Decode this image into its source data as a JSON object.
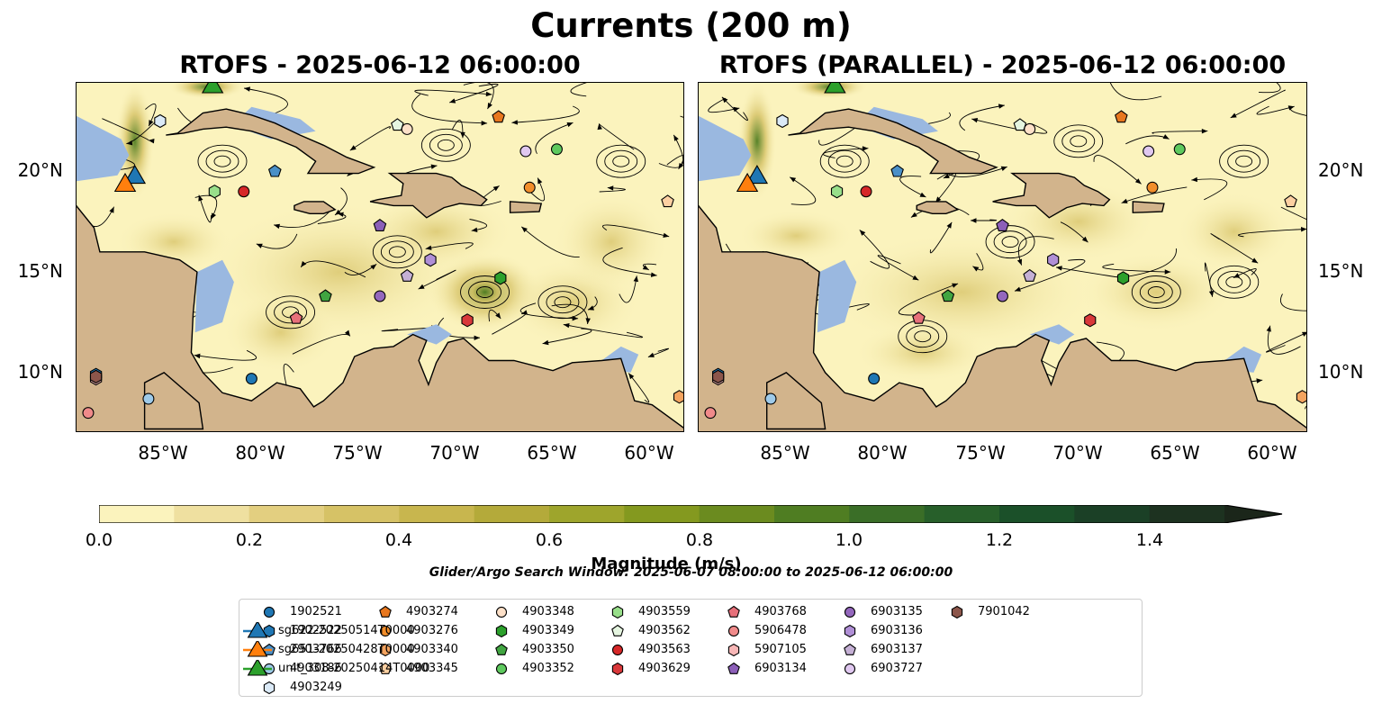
{
  "figure": {
    "suptitle": "Currents (200 m)",
    "left_title": "RTOFS - 2025-06-12 06:00:00",
    "right_title": "RTOFS (PARALLEL) - 2025-06-12 06:00:00",
    "x_ticks": [
      "85°W",
      "80°W",
      "75°W",
      "70°W",
      "65°W",
      "60°W"
    ],
    "y_ticks": [
      "20°N",
      "15°N",
      "10°N"
    ],
    "lon_range": [
      -89.5,
      -58.2
    ],
    "lat_range": [
      7.0,
      24.4
    ],
    "colorbar": {
      "label": "Magnitude (m/s)",
      "ticks": [
        "0.0",
        "0.2",
        "0.4",
        "0.6",
        "0.8",
        "1.0",
        "1.2",
        "1.4"
      ],
      "range": [
        0,
        1.5
      ],
      "extend": "max",
      "colors": [
        "#fbf3bd",
        "#efe0a0",
        "#e3cf80",
        "#d6c266",
        "#c8b64e",
        "#b4aa3a",
        "#9ea52c",
        "#84991f",
        "#6b8b1f",
        "#4f7d22",
        "#3a6e27",
        "#275f2a",
        "#1b5029",
        "#1b4026",
        "#1d3220",
        "#1b261a"
      ]
    },
    "search_window": "Glider/Argo Search Window: 2025-06-07 08:00:00 to 2025-06-12 06:00:00",
    "colors": {
      "land": "#d2b48c",
      "shallow_water": "#9ab8e0",
      "low_speed": "#fbf3bd",
      "mid_speed": "#d6c266",
      "high_speed": "#4f7d22"
    }
  },
  "legend": [
    {
      "id": "1902521",
      "marker": "circle",
      "color": "#1f77b4"
    },
    {
      "id": "1902522",
      "marker": "hexagon",
      "color": "#1f77b4"
    },
    {
      "id": "2903766",
      "marker": "pentagon",
      "color": "#4a90c8"
    },
    {
      "id": "4903186",
      "marker": "circle",
      "color": "#9ecae9"
    },
    {
      "id": "4903249",
      "marker": "hexagon",
      "color": "#dbeaf7"
    },
    {
      "id": "4903274",
      "marker": "pentagon",
      "color": "#e8771e"
    },
    {
      "id": "4903276",
      "marker": "circle",
      "color": "#f28e2b"
    },
    {
      "id": "4903340",
      "marker": "hexagon",
      "color": "#f4a460"
    },
    {
      "id": "4903345",
      "marker": "pentagon",
      "color": "#fdd0a2"
    },
    {
      "id": "4903348",
      "marker": "circle",
      "color": "#fde0c8"
    },
    {
      "id": "4903349",
      "marker": "hexagon",
      "color": "#2ca02c"
    },
    {
      "id": "4903350",
      "marker": "pentagon",
      "color": "#41a541"
    },
    {
      "id": "4903352",
      "marker": "circle",
      "color": "#5ec95e"
    },
    {
      "id": "4903559",
      "marker": "hexagon",
      "color": "#98df8a"
    },
    {
      "id": "4903562",
      "marker": "pentagon",
      "color": "#e5f5e0"
    },
    {
      "id": "4903563",
      "marker": "circle",
      "color": "#d62728"
    },
    {
      "id": "4903629",
      "marker": "hexagon",
      "color": "#d9383a"
    },
    {
      "id": "4903768",
      "marker": "pentagon",
      "color": "#e7707a"
    },
    {
      "id": "5906478",
      "marker": "circle",
      "color": "#f08a8a"
    },
    {
      "id": "5907105",
      "marker": "hexagon",
      "color": "#f7b6b6"
    },
    {
      "id": "6903134",
      "marker": "pentagon",
      "color": "#8c5fb8"
    },
    {
      "id": "6903135",
      "marker": "circle",
      "color": "#9467bd"
    },
    {
      "id": "6903136",
      "marker": "hexagon",
      "color": "#b08fd6"
    },
    {
      "id": "6903137",
      "marker": "pentagon",
      "color": "#c5b0d5"
    },
    {
      "id": "6903727",
      "marker": "circle",
      "color": "#e0c8f0"
    },
    {
      "id": "7901042",
      "marker": "hexagon",
      "color": "#8c564b"
    },
    {
      "id": "sg622-20250514T0000",
      "marker": "triangle",
      "color": "#1f77b4"
    },
    {
      "id": "sg651-20250428T0000",
      "marker": "triangle",
      "color": "#ff7f0e"
    },
    {
      "id": "unit_308-20250414T0000",
      "marker": "triangle",
      "color": "#2ca02c"
    }
  ],
  "stations": [
    {
      "id": "1902521",
      "lon": -80.5,
      "lat": 9.7
    },
    {
      "id": "1902522",
      "lon": -88.5,
      "lat": 9.9
    },
    {
      "id": "2903766",
      "lon": -79.3,
      "lat": 20.0
    },
    {
      "id": "4903186",
      "lon": -85.8,
      "lat": 8.7
    },
    {
      "id": "4903249",
      "lon": -85.2,
      "lat": 22.5
    },
    {
      "id": "4903274",
      "lon": -67.8,
      "lat": 22.7
    },
    {
      "id": "4903276",
      "lon": -66.2,
      "lat": 19.2
    },
    {
      "id": "4903340",
      "lon": -58.5,
      "lat": 8.8
    },
    {
      "id": "4903345",
      "lon": -59.1,
      "lat": 18.5
    },
    {
      "id": "4903348",
      "lon": -72.5,
      "lat": 22.1
    },
    {
      "id": "4903349",
      "lon": -67.7,
      "lat": 14.7
    },
    {
      "id": "4903350",
      "lon": -76.7,
      "lat": 13.8
    },
    {
      "id": "4903352",
      "lon": -64.8,
      "lat": 21.1
    },
    {
      "id": "4903559",
      "lon": -82.4,
      "lat": 19.0
    },
    {
      "id": "4903562",
      "lon": -73.0,
      "lat": 22.3
    },
    {
      "id": "4903563",
      "lon": -80.9,
      "lat": 19.0
    },
    {
      "id": "4903629",
      "lon": -69.4,
      "lat": 12.6
    },
    {
      "id": "4903768",
      "lon": -78.2,
      "lat": 12.7
    },
    {
      "id": "5906478",
      "lon": -88.9,
      "lat": 8.0
    },
    {
      "id": "5907105",
      "lon": -88.5,
      "lat": 9.7
    },
    {
      "id": "6903134",
      "lon": -73.9,
      "lat": 17.3
    },
    {
      "id": "6903135",
      "lon": -73.9,
      "lat": 13.8
    },
    {
      "id": "6903136",
      "lon": -71.3,
      "lat": 15.6
    },
    {
      "id": "6903137",
      "lon": -72.5,
      "lat": 14.8
    },
    {
      "id": "6903727",
      "lon": -66.4,
      "lat": 21.0
    },
    {
      "id": "7901042",
      "lon": -88.5,
      "lat": 9.8
    },
    {
      "id": "sg622-20250514T0000",
      "lon": -86.5,
      "lat": 19.7
    },
    {
      "id": "sg651-20250428T0000",
      "lon": -87.0,
      "lat": 19.3
    },
    {
      "id": "unit_308-20250414T0000",
      "lon": -82.5,
      "lat": 24.2
    }
  ]
}
